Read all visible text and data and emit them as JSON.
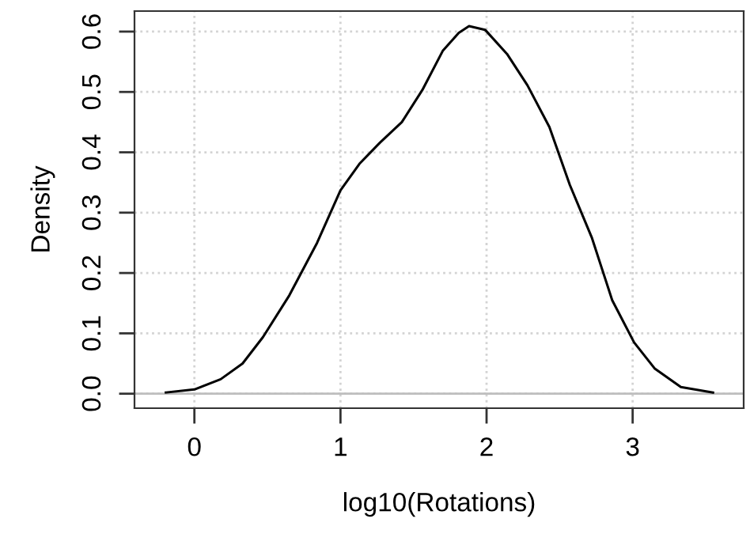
{
  "chart_data": {
    "type": "line",
    "xlabel": "log10(Rotations)",
    "ylabel": "Density",
    "xlim": [
      -0.41,
      3.76
    ],
    "ylim": [
      -0.024,
      0.634
    ],
    "xticks": [
      0,
      1,
      2,
      3
    ],
    "yticks": [
      {
        "value": 0,
        "label": "0.0"
      },
      0.1,
      0.2,
      0.3,
      0.4,
      0.5,
      0.6
    ],
    "grid": true,
    "line_style": "solid",
    "marker": "none",
    "ref_lines": [
      {
        "axis": "y",
        "value": 0,
        "color": "#bebebe"
      }
    ],
    "series": [
      {
        "color": "#000000",
        "x": [
          -0.195,
          0,
          0.18,
          0.33,
          0.47,
          0.65,
          0.84,
          1.0,
          1.13,
          1.27,
          1.42,
          1.56,
          1.7,
          1.81,
          1.88,
          1.99,
          2.14,
          2.28,
          2.43,
          2.57,
          2.72,
          2.86,
          3.01,
          3.15,
          3.33,
          3.55
        ],
        "values": [
          0.002,
          0.007,
          0.024,
          0.05,
          0.094,
          0.163,
          0.25,
          0.337,
          0.381,
          0.416,
          0.45,
          0.503,
          0.568,
          0.598,
          0.609,
          0.603,
          0.563,
          0.511,
          0.442,
          0.346,
          0.259,
          0.155,
          0.085,
          0.042,
          0.011,
          0.002
        ]
      }
    ]
  }
}
